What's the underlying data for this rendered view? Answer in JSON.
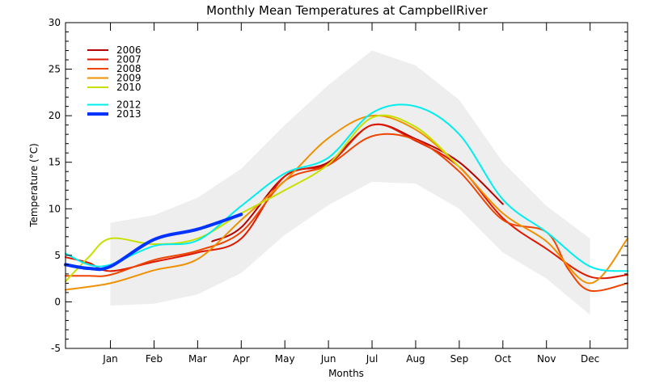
{
  "chart_data": {
    "type": "line",
    "title": "Monthly Mean Temperatures at CampbellRiver",
    "xlabel": "Months",
    "ylabel": "Temperature (°C)",
    "ylim": [
      -5,
      30
    ],
    "y_ticks": [
      -5,
      0,
      5,
      10,
      15,
      20,
      25,
      30
    ],
    "xlim": [
      -0.03,
      12.86
    ],
    "months": [
      "Jan",
      "Feb",
      "Mar",
      "Apr",
      "May",
      "Jun",
      "Jul",
      "Aug",
      "Sep",
      "Oct",
      "Nov",
      "Dec"
    ],
    "month_positions": [
      1,
      2,
      3,
      4,
      5,
      6,
      7,
      8,
      9,
      10,
      11,
      12
    ],
    "band": {
      "fill": "#eeeeee",
      "x": [
        1,
        2,
        3,
        4,
        5,
        6,
        7,
        8,
        9,
        10,
        11,
        12
      ],
      "upper": [
        8.5,
        9.3,
        11.2,
        14.3,
        19.0,
        23.3,
        27.0,
        25.4,
        21.7,
        15.0,
        10.3,
        6.8
      ],
      "lower": [
        -0.4,
        -0.2,
        0.8,
        3.1,
        7.2,
        10.4,
        12.9,
        12.7,
        10.0,
        5.3,
        2.5,
        -1.4
      ]
    },
    "series": [
      {
        "name": "2006",
        "color": "#b40000",
        "width": 2,
        "x": [
          3.33,
          4.0,
          5.0,
          6.0,
          7.0,
          8.0,
          9.0,
          10.0
        ],
        "y": [
          6.5,
          8.0,
          13.5,
          15.0,
          19.0,
          17.5,
          15.0,
          10.5
        ]
      },
      {
        "name": "2007",
        "color": "#dd1a00",
        "width": 2,
        "x": [
          -0.03,
          0.5,
          1.0,
          2.0,
          3.0,
          4.0,
          5.0,
          6.0,
          7.0,
          8.0,
          9.0,
          10.0,
          11.0,
          12.0,
          12.86
        ],
        "y": [
          4.8,
          4.2,
          3.3,
          4.3,
          5.3,
          6.8,
          13.5,
          14.8,
          19.0,
          17.3,
          14.5,
          9.0,
          5.7,
          2.7,
          2.9
        ]
      },
      {
        "name": "2008",
        "color": "#ee4400",
        "width": 2,
        "x": [
          -0.03,
          0.5,
          1.0,
          2.0,
          3.0,
          4.0,
          5.0,
          6.0,
          7.0,
          8.0,
          9.0,
          10.0,
          11.0,
          11.5,
          12.0,
          12.86
        ],
        "y": [
          2.8,
          2.8,
          2.9,
          4.5,
          5.5,
          7.5,
          13.0,
          14.7,
          17.8,
          17.4,
          14.0,
          8.8,
          7.5,
          3.5,
          1.2,
          2.0
        ]
      },
      {
        "name": "2009",
        "color": "#f09000",
        "width": 2,
        "x": [
          -0.03,
          1.0,
          2.0,
          3.0,
          4.0,
          5.0,
          6.0,
          7.0,
          8.0,
          9.0,
          10.0,
          11.0,
          12.0,
          12.86
        ],
        "y": [
          1.3,
          2.0,
          3.4,
          4.6,
          8.8,
          13.0,
          17.6,
          20.0,
          18.5,
          14.5,
          9.5,
          6.5,
          2.0,
          6.8
        ]
      },
      {
        "name": "2010",
        "color": "#c8e000",
        "width": 2,
        "x": [
          -0.03,
          0.5,
          1.0,
          2.0,
          3.0,
          4.0,
          5.0,
          6.0,
          7.0,
          8.0,
          9.0
        ],
        "y": [
          2.2,
          4.8,
          6.8,
          6.2,
          6.8,
          9.5,
          12.0,
          14.8,
          19.8,
          18.8,
          14.5
        ]
      },
      {
        "name": "2012",
        "color": "#00eeee",
        "width": 2,
        "x": [
          -0.03,
          0.5,
          1.0,
          2.0,
          3.0,
          4.0,
          5.0,
          6.0,
          7.0,
          8.0,
          9.0,
          10.0,
          11.0,
          12.0,
          12.86
        ],
        "y": [
          5.2,
          4.0,
          4.0,
          6.0,
          6.6,
          10.3,
          13.8,
          15.5,
          20.3,
          21.0,
          18.0,
          11.0,
          7.5,
          3.8,
          3.3
        ]
      },
      {
        "name": "2013",
        "color": "#0033ff",
        "width": 4,
        "x": [
          -0.03,
          0.5,
          1.0,
          2.0,
          3.0,
          4.0
        ],
        "y": [
          4.0,
          3.6,
          3.8,
          6.7,
          7.8,
          9.4
        ]
      }
    ],
    "legend_placement": "top-left"
  }
}
